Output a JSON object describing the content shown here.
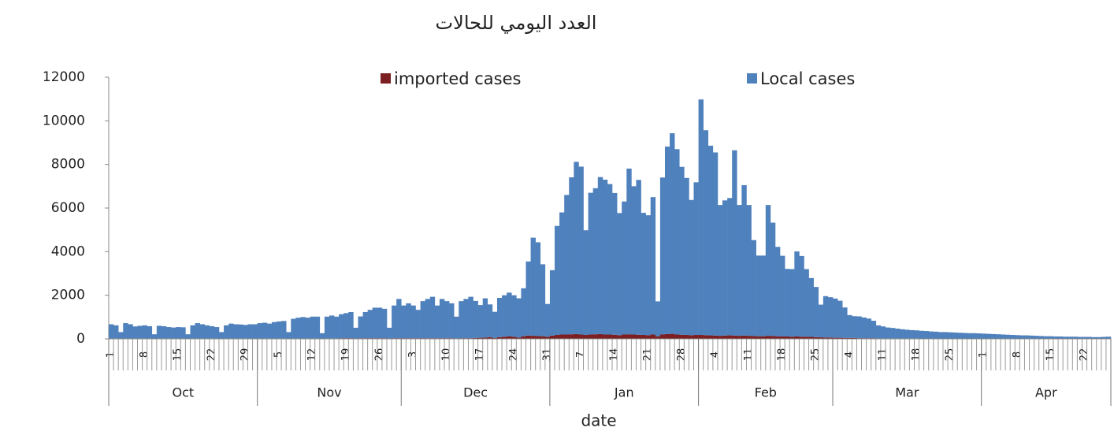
{
  "chart_data": {
    "type": "stacked_bar",
    "title": "العدد اليومي للحالات",
    "x_label": "date",
    "categories": [
      "1",
      null,
      null,
      null,
      null,
      null,
      null,
      "8",
      null,
      null,
      null,
      null,
      null,
      null,
      "15",
      null,
      null,
      null,
      null,
      null,
      null,
      "22",
      null,
      null,
      null,
      null,
      null,
      null,
      "29",
      null,
      null,
      null,
      null,
      null,
      null,
      "5",
      null,
      null,
      null,
      null,
      null,
      null,
      "12",
      null,
      null,
      null,
      null,
      null,
      null,
      "19",
      null,
      null,
      null,
      null,
      null,
      null,
      "26",
      null,
      null,
      null,
      null,
      null,
      null,
      "3",
      null,
      null,
      null,
      null,
      null,
      null,
      "10",
      null,
      null,
      null,
      null,
      null,
      null,
      "17",
      null,
      null,
      null,
      null,
      null,
      null,
      "24",
      null,
      null,
      null,
      null,
      null,
      null,
      "31",
      null,
      null,
      null,
      null,
      null,
      null,
      "7",
      null,
      null,
      null,
      null,
      null,
      null,
      "14",
      null,
      null,
      null,
      null,
      null,
      null,
      "21",
      null,
      null,
      null,
      null,
      null,
      null,
      "28",
      null,
      null,
      null,
      null,
      null,
      null,
      "4",
      null,
      null,
      null,
      null,
      null,
      null,
      "11",
      null,
      null,
      null,
      null,
      null,
      null,
      "18",
      null,
      null,
      null,
      null,
      null,
      null,
      "25",
      null,
      null,
      null,
      null,
      null,
      null,
      "4",
      null,
      null,
      null,
      null,
      null,
      null,
      "11",
      null,
      null,
      null,
      null,
      null,
      null,
      "18",
      null,
      null,
      null,
      null,
      null,
      null,
      "25",
      null,
      null,
      null,
      null,
      null,
      null,
      "1",
      null,
      null,
      null,
      null,
      null,
      null,
      "8",
      null,
      null,
      null,
      null,
      null,
      null,
      "15",
      null,
      null,
      null,
      null,
      null,
      null,
      "22",
      null,
      null,
      null,
      null,
      null
    ],
    "groups": [
      {
        "label": "Oct",
        "span": 31
      },
      {
        "label": "Nov",
        "span": 30
      },
      {
        "label": "Dec",
        "span": 31
      },
      {
        "label": "Jan",
        "span": 31
      },
      {
        "label": "Feb",
        "span": 28
      },
      {
        "label": "Mar",
        "span": 31
      },
      {
        "label": "Apr",
        "span": 27
      }
    ],
    "series": [
      {
        "name": "imported cases",
        "color": "#7b1f22",
        "values": [
          20,
          20,
          10,
          20,
          20,
          20,
          20,
          20,
          20,
          10,
          20,
          20,
          20,
          20,
          20,
          20,
          10,
          20,
          20,
          20,
          20,
          20,
          20,
          10,
          20,
          20,
          20,
          20,
          20,
          20,
          20,
          20,
          20,
          20,
          20,
          20,
          20,
          10,
          20,
          20,
          20,
          20,
          20,
          20,
          10,
          20,
          20,
          20,
          30,
          30,
          30,
          10,
          30,
          30,
          30,
          30,
          30,
          30,
          10,
          30,
          30,
          30,
          30,
          30,
          30,
          30,
          30,
          30,
          30,
          30,
          30,
          30,
          20,
          30,
          30,
          30,
          40,
          50,
          60,
          80,
          40,
          80,
          100,
          120,
          100,
          60,
          120,
          150,
          140,
          130,
          120,
          100,
          150,
          180,
          200,
          200,
          210,
          220,
          200,
          180,
          200,
          210,
          220,
          200,
          200,
          190,
          170,
          200,
          210,
          200,
          190,
          180,
          170,
          200,
          120,
          200,
          220,
          230,
          200,
          190,
          180,
          170,
          180,
          180,
          170,
          160,
          150,
          140,
          150,
          160,
          150,
          140,
          150,
          140,
          130,
          120,
          120,
          140,
          130,
          120,
          110,
          110,
          100,
          110,
          100,
          100,
          90,
          80,
          70,
          60,
          60,
          50,
          50,
          40,
          40,
          40,
          30,
          30,
          30,
          30,
          20,
          20,
          20,
          20,
          20,
          20,
          20,
          20,
          20,
          10,
          10,
          10,
          10,
          10,
          10,
          10,
          10,
          10,
          10,
          10,
          10,
          10,
          10,
          10,
          10,
          10,
          10,
          10,
          10,
          10,
          10,
          10,
          10,
          10,
          10,
          10,
          10,
          10,
          10,
          10,
          10,
          10,
          10,
          10,
          10,
          10,
          10,
          10,
          10
        ]
      },
      {
        "name": "Local cases",
        "color": "#4f81bd",
        "values": [
          650,
          600,
          300,
          700,
          650,
          550,
          580,
          600,
          560,
          200,
          580,
          560,
          520,
          500,
          520,
          510,
          200,
          600,
          700,
          650,
          600,
          560,
          520,
          300,
          600,
          680,
          650,
          640,
          620,
          650,
          650,
          700,
          720,
          680,
          750,
          780,
          800,
          300,
          900,
          950,
          980,
          950,
          1000,
          1000,
          250,
          1000,
          1050,
          1000,
          1100,
          1150,
          1200,
          500,
          1000,
          1200,
          1300,
          1400,
          1400,
          1350,
          500,
          1500,
          1800,
          1500,
          1600,
          1500,
          1300,
          1700,
          1800,
          1900,
          1500,
          1800,
          1700,
          1600,
          1000,
          1700,
          1800,
          1900,
          1700,
          1500,
          1800,
          1500,
          1200,
          1800,
          1900,
          2000,
          1900,
          1800,
          2200,
          3400,
          4500,
          4300,
          3300,
          1500,
          3000,
          5000,
          5600,
          6400,
          7200,
          7900,
          7700,
          4800,
          6500,
          6700,
          7200,
          7100,
          6900,
          6500,
          5600,
          6100,
          7600,
          6800,
          7100,
          5600,
          5500,
          6300,
          1600,
          7200,
          8600,
          9200,
          8500,
          7700,
          7200,
          6200,
          7000,
          10800,
          9400,
          8700,
          8400,
          6000,
          6200,
          6300,
          8500,
          6000,
          6900,
          6000,
          4400,
          3700,
          3700,
          6000,
          5200,
          4100,
          3700,
          3100,
          3100,
          3900,
          3700,
          3100,
          2700,
          2300,
          1500,
          1900,
          1850,
          1800,
          1700,
          1400,
          1050,
          1000,
          1000,
          950,
          900,
          800,
          600,
          550,
          500,
          480,
          450,
          420,
          400,
          380,
          370,
          360,
          350,
          330,
          320,
          300,
          300,
          290,
          280,
          270,
          260,
          250,
          250,
          240,
          230,
          220,
          210,
          200,
          190,
          180,
          170,
          160,
          150,
          150,
          140,
          130,
          120,
          110,
          110,
          100,
          100,
          90,
          90,
          90,
          80,
          80,
          80,
          70,
          70,
          80,
          90
        ]
      }
    ],
    "ylim": [
      0,
      12000
    ],
    "yticks": [
      0,
      2000,
      4000,
      6000,
      8000,
      10000,
      12000
    ]
  }
}
